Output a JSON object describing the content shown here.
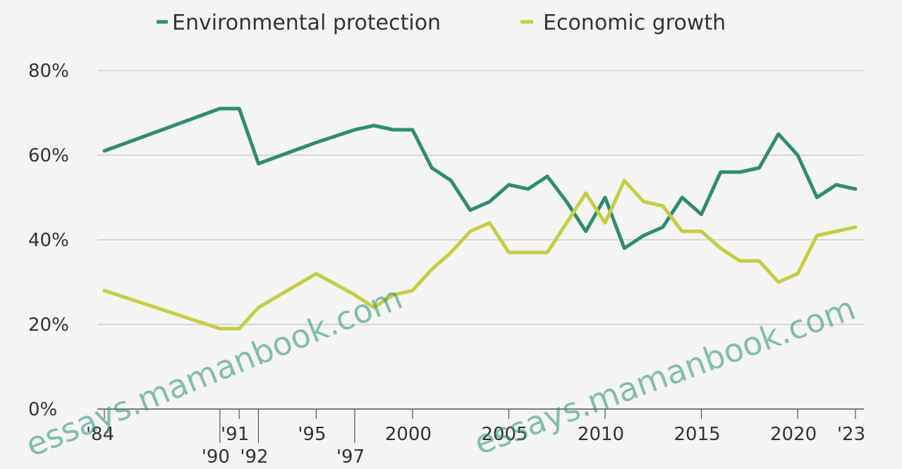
{
  "watermark": "essays.mamanbook.com",
  "colors": {
    "env": "#2f8c73",
    "econ": "#c6cd45",
    "grid": "#d7d7d7",
    "axis": "#555555"
  },
  "chart_data": {
    "type": "line",
    "title": "",
    "xlabel": "",
    "ylabel": "",
    "legend_position": "top",
    "grid": true,
    "xlim": [
      1984,
      2023
    ],
    "ylim": [
      0,
      80
    ],
    "y_ticks": [
      0,
      20,
      40,
      60,
      80
    ],
    "y_tick_labels": [
      "0%",
      "20%",
      "40%",
      "60%",
      "80%"
    ],
    "x_ticks": [
      {
        "x": 1984,
        "label": "'84",
        "row": 0
      },
      {
        "x": 1990,
        "label": "'90",
        "row": 1
      },
      {
        "x": 1991,
        "label": "'91",
        "row": 0
      },
      {
        "x": 1992,
        "label": "'92",
        "row": 1
      },
      {
        "x": 1995,
        "label": "'95",
        "row": 0
      },
      {
        "x": 1997,
        "label": "'97",
        "row": 1
      },
      {
        "x": 2000,
        "label": "2000",
        "row": 0
      },
      {
        "x": 2005,
        "label": "2005",
        "row": 0
      },
      {
        "x": 2010,
        "label": "2010",
        "row": 0
      },
      {
        "x": 2015,
        "label": "2015",
        "row": 0
      },
      {
        "x": 2020,
        "label": "2020",
        "row": 0
      },
      {
        "x": 2023,
        "label": "'23",
        "row": 0
      }
    ],
    "series": [
      {
        "name": "Environmental protection",
        "color_key": "env",
        "points": [
          [
            1984,
            61
          ],
          [
            1990,
            71
          ],
          [
            1991,
            71
          ],
          [
            1992,
            58
          ],
          [
            1995,
            63
          ],
          [
            1997,
            66
          ],
          [
            1998,
            67
          ],
          [
            1999,
            66
          ],
          [
            2000,
            66
          ],
          [
            2001,
            57
          ],
          [
            2002,
            54
          ],
          [
            2003,
            47
          ],
          [
            2004,
            49
          ],
          [
            2005,
            53
          ],
          [
            2006,
            52
          ],
          [
            2007,
            55
          ],
          [
            2008,
            49
          ],
          [
            2009,
            42
          ],
          [
            2010,
            50
          ],
          [
            2011,
            38
          ],
          [
            2012,
            41
          ],
          [
            2013,
            43
          ],
          [
            2014,
            50
          ],
          [
            2015,
            46
          ],
          [
            2016,
            56
          ],
          [
            2017,
            56
          ],
          [
            2018,
            57
          ],
          [
            2019,
            65
          ],
          [
            2020,
            60
          ],
          [
            2021,
            50
          ],
          [
            2022,
            53
          ],
          [
            2023,
            52
          ]
        ]
      },
      {
        "name": "Economic growth",
        "color_key": "econ",
        "points": [
          [
            1984,
            28
          ],
          [
            1990,
            19
          ],
          [
            1991,
            19
          ],
          [
            1992,
            24
          ],
          [
            1995,
            32
          ],
          [
            1997,
            27
          ],
          [
            1998,
            24
          ],
          [
            1999,
            27
          ],
          [
            2000,
            28
          ],
          [
            2001,
            33
          ],
          [
            2002,
            37
          ],
          [
            2003,
            42
          ],
          [
            2004,
            44
          ],
          [
            2005,
            37
          ],
          [
            2006,
            37
          ],
          [
            2007,
            37
          ],
          [
            2008,
            44
          ],
          [
            2009,
            51
          ],
          [
            2010,
            44
          ],
          [
            2011,
            54
          ],
          [
            2012,
            49
          ],
          [
            2013,
            48
          ],
          [
            2014,
            42
          ],
          [
            2015,
            42
          ],
          [
            2016,
            38
          ],
          [
            2017,
            35
          ],
          [
            2018,
            35
          ],
          [
            2019,
            30
          ],
          [
            2020,
            32
          ],
          [
            2021,
            41
          ],
          [
            2022,
            42
          ],
          [
            2023,
            43
          ]
        ]
      }
    ]
  }
}
